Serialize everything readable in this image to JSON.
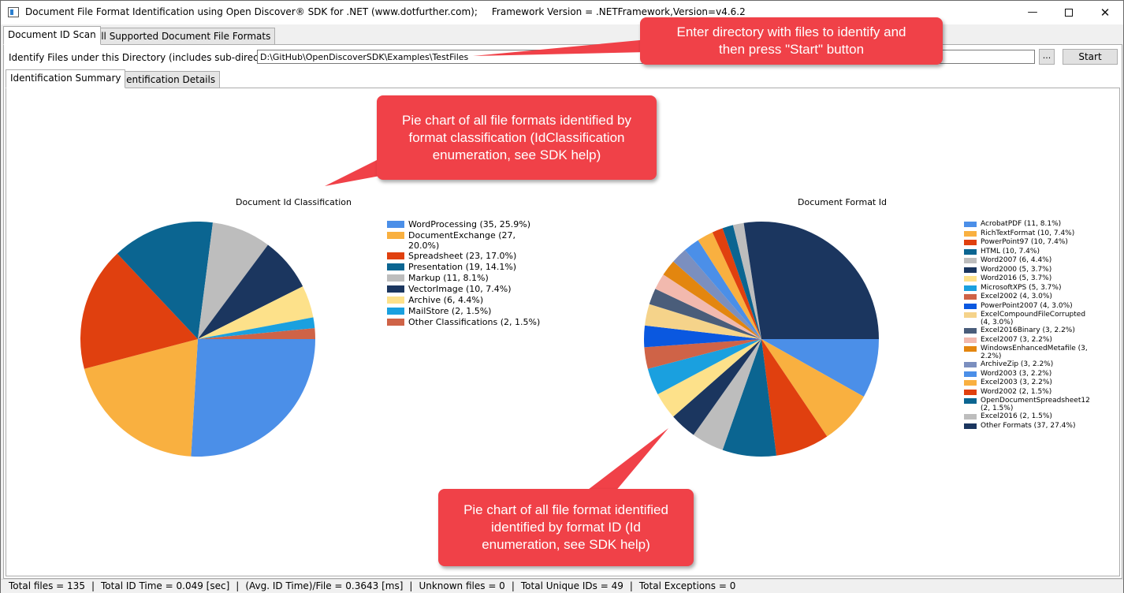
{
  "window": {
    "title": "Document File Format Identification using Open Discover® SDK for .NET (www.dotfurther.com);",
    "framework": "Framework Version = .NETFramework,Version=v4.6.2",
    "minimize_glyph": "—",
    "close_glyph": "✕"
  },
  "main_tabs": [
    {
      "label": "Document ID Scan"
    },
    {
      "label": "All Supported Document File Formats"
    }
  ],
  "directory": {
    "label": "Identify Files under this Directory (includes sub-directories):",
    "value": "D:\\GitHub\\OpenDiscoverSDK\\Examples\\TestFiles",
    "browse_label": "...",
    "start_label": "Start"
  },
  "sub_tabs": [
    {
      "label": "Identification Summary"
    },
    {
      "label": "Identification Details"
    }
  ],
  "chart_data": [
    {
      "type": "pie",
      "title": "Document Id Classification",
      "legend_position": "right",
      "slices": [
        {
          "label": "WordProcessing (35, 25.9%)",
          "value": 35,
          "color": "#4b8fe8"
        },
        {
          "label": "DocumentExchange (27, 20.0%)",
          "value": 27,
          "color": "#f9b040"
        },
        {
          "label": "Spreadsheet (23, 17.0%)",
          "value": 23,
          "color": "#e0400f"
        },
        {
          "label": "Presentation (19, 14.1%)",
          "value": 19,
          "color": "#0b6591"
        },
        {
          "label": "Markup (11, 8.1%)",
          "value": 11,
          "color": "#bdbdbd"
        },
        {
          "label": "VectorImage (10, 7.4%)",
          "value": 10,
          "color": "#1b365f"
        },
        {
          "label": "Archive (6, 4.4%)",
          "value": 6,
          "color": "#fde18a"
        },
        {
          "label": "MailStore (2, 1.5%)",
          "value": 2,
          "color": "#1aa0df"
        },
        {
          "label": "Other Classifications (2, 1.5%)",
          "value": 2,
          "color": "#cf6347"
        }
      ]
    },
    {
      "type": "pie",
      "title": "Document Format Id",
      "legend_position": "right",
      "slices": [
        {
          "label": "AcrobatPDF (11, 8.1%)",
          "value": 11,
          "color": "#4b8fe8"
        },
        {
          "label": "RichTextFormat (10, 7.4%)",
          "value": 10,
          "color": "#f9b040"
        },
        {
          "label": "PowerPoint97 (10, 7.4%)",
          "value": 10,
          "color": "#e0400f"
        },
        {
          "label": "HTML (10, 7.4%)",
          "value": 10,
          "color": "#0b6591"
        },
        {
          "label": "Word2007 (6, 4.4%)",
          "value": 6,
          "color": "#bdbdbd"
        },
        {
          "label": "Word2000 (5, 3.7%)",
          "value": 5,
          "color": "#1b365f"
        },
        {
          "label": "Word2016 (5, 3.7%)",
          "value": 5,
          "color": "#fde18a"
        },
        {
          "label": "MicrosoftXPS (5, 3.7%)",
          "value": 5,
          "color": "#1aa0df"
        },
        {
          "label": "Excel2002 (4, 3.0%)",
          "value": 4,
          "color": "#cf6347"
        },
        {
          "label": "PowerPoint2007 (4, 3.0%)",
          "value": 4,
          "color": "#0a58e0"
        },
        {
          "label": "ExcelCompoundFileCorrupted (4, 3.0%)",
          "value": 4,
          "color": "#f5d38a"
        },
        {
          "label": "Excel2016Binary (3, 2.2%)",
          "value": 3,
          "color": "#4a5d7a"
        },
        {
          "label": "Excel2007 (3, 2.2%)",
          "value": 3,
          "color": "#f2b9ae"
        },
        {
          "label": "WindowsEnhancedMetafile (3, 2.2%)",
          "value": 3,
          "color": "#e3860f"
        },
        {
          "label": "ArchiveZip (3, 2.2%)",
          "value": 3,
          "color": "#7b8fbf"
        },
        {
          "label": "Word2003 (3, 2.2%)",
          "value": 3,
          "color": "#4b8fe8"
        },
        {
          "label": "Excel2003 (3, 2.2%)",
          "value": 3,
          "color": "#f9b040"
        },
        {
          "label": "Word2002 (2, 1.5%)",
          "value": 2,
          "color": "#e0400f"
        },
        {
          "label": "OpenDocumentSpreadsheet12 (2, 1.5%)",
          "value": 2,
          "color": "#0b6591"
        },
        {
          "label": "Excel2016 (2, 1.5%)",
          "value": 2,
          "color": "#bdbdbd"
        },
        {
          "label": "Other Formats (37, 27.4%)",
          "value": 37,
          "color": "#1b365f"
        }
      ]
    }
  ],
  "status": [
    "Total files = 135",
    "Total ID Time = 0.049 [sec]",
    "(Avg. ID Time)/File = 0.3643 [ms]",
    "Unknown files = 0",
    "Total Unique IDs = 49",
    "Total Exceptions = 0"
  ],
  "callouts": {
    "start_hint": [
      "Enter directory with files to identify and",
      "then press \"Start\" button"
    ],
    "classification_hint": [
      "Pie chart of all file formats identified by",
      "format classification (IdClassification",
      "enumeration, see SDK help)"
    ],
    "format_hint": [
      "Pie chart of all file format identified",
      "identified by format ID (Id",
      "enumeration, see SDK help)"
    ],
    "color": "#f04148"
  }
}
